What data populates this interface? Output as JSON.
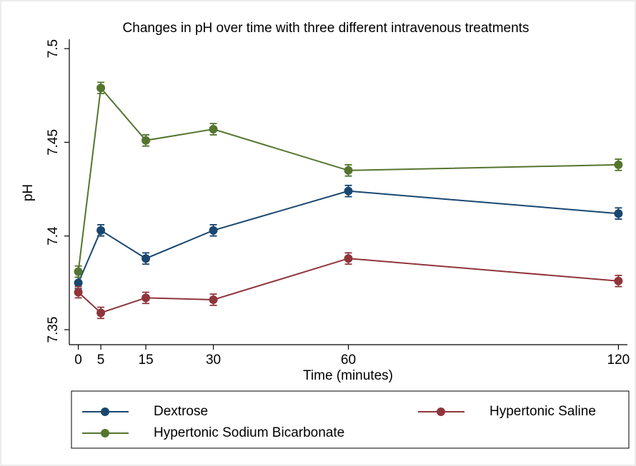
{
  "chart_data": {
    "type": "line",
    "title": "Changes in pH over time with three different intravenous treatments",
    "x_label": "Time (minutes)",
    "y_label": "pH",
    "x": [
      0,
      5,
      15,
      30,
      60,
      120
    ],
    "xlim": [
      -2,
      122
    ],
    "xticks": [
      0,
      5,
      15,
      30,
      60,
      120
    ],
    "ylim": [
      7.342,
      7.505
    ],
    "yticks": [
      7.35,
      7.4,
      7.45,
      7.5
    ],
    "grid": false,
    "legend": "bottom",
    "series": [
      {
        "name": "Dextrose",
        "color": "#1a476f",
        "values": [
          7.375,
          7.403,
          7.388,
          7.403,
          7.424,
          7.412
        ],
        "errors": [
          0.003,
          0.003,
          0.003,
          0.003,
          0.003,
          0.003
        ]
      },
      {
        "name": "Hypertonic Saline",
        "color": "#90353b",
        "values": [
          7.37,
          7.359,
          7.367,
          7.366,
          7.388,
          7.376
        ],
        "errors": [
          0.003,
          0.003,
          0.003,
          0.003,
          0.003,
          0.003
        ]
      },
      {
        "name": "Hypertonic Sodium Bicarbonate",
        "color": "#55752f",
        "values": [
          7.381,
          7.479,
          7.451,
          7.457,
          7.435,
          7.438
        ],
        "errors": [
          0.003,
          0.003,
          0.003,
          0.003,
          0.003,
          0.003
        ]
      }
    ]
  }
}
